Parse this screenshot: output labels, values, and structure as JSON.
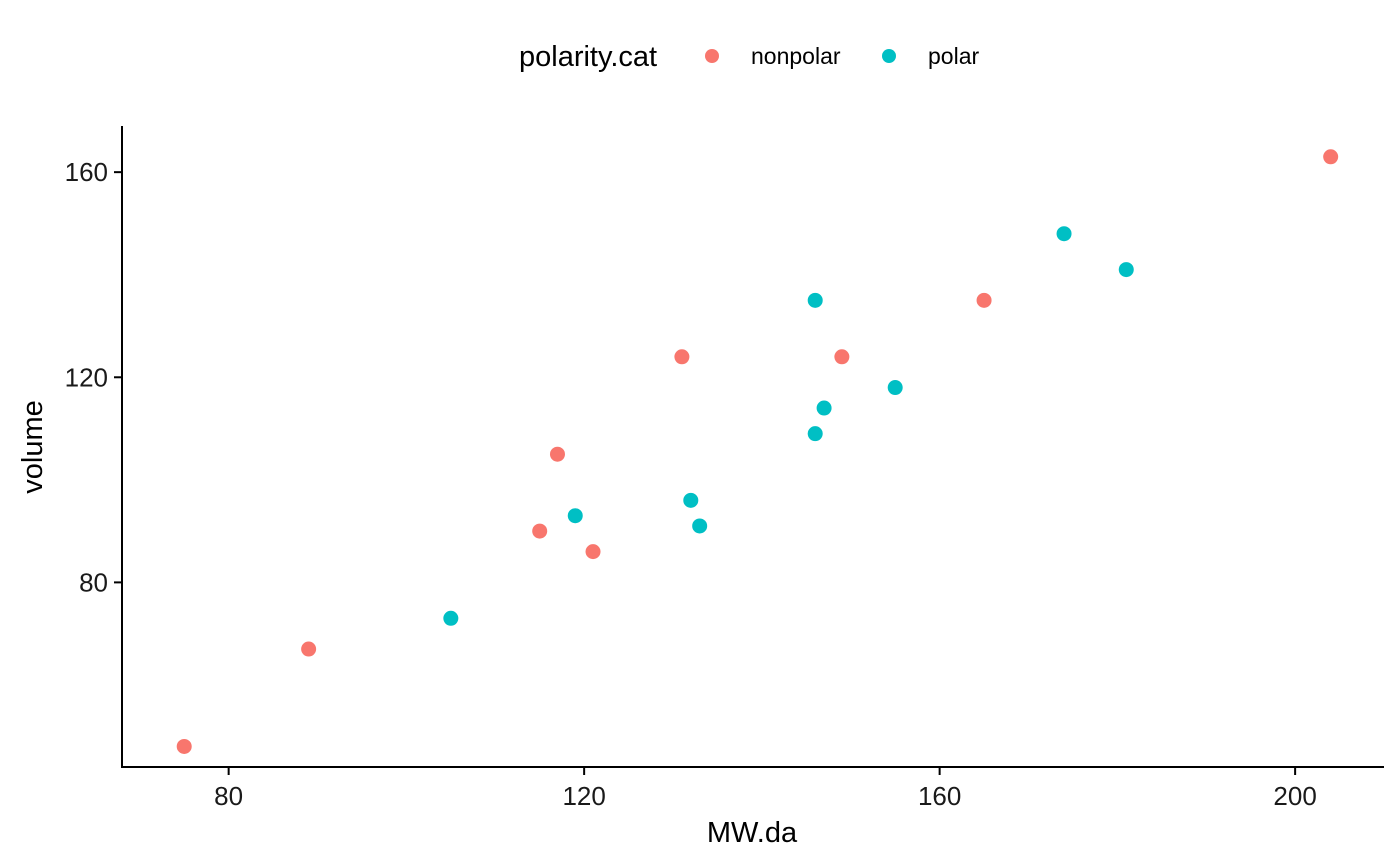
{
  "chart_data": {
    "type": "scatter",
    "title": "",
    "xlabel": "MW.da",
    "ylabel": "volume",
    "xlim": [
      68,
      210
    ],
    "ylim": [
      44,
      169
    ],
    "xticks": [
      80,
      120,
      160,
      200
    ],
    "yticks": [
      80,
      120,
      160
    ],
    "grid": false,
    "legend": {
      "title": "polarity.cat",
      "position": "top"
    },
    "series": [
      {
        "name": "nonpolar",
        "color": "#F8766D",
        "points": [
          {
            "x": 75,
            "y": 48
          },
          {
            "x": 89,
            "y": 67
          },
          {
            "x": 115,
            "y": 90
          },
          {
            "x": 117,
            "y": 105
          },
          {
            "x": 121,
            "y": 86
          },
          {
            "x": 131,
            "y": 124
          },
          {
            "x": 149,
            "y": 124
          },
          {
            "x": 165,
            "y": 135
          },
          {
            "x": 204,
            "y": 163
          }
        ]
      },
      {
        "name": "polar",
        "color": "#00BFC4",
        "points": [
          {
            "x": 105,
            "y": 73
          },
          {
            "x": 119,
            "y": 93
          },
          {
            "x": 132,
            "y": 96
          },
          {
            "x": 133,
            "y": 91
          },
          {
            "x": 146,
            "y": 135
          },
          {
            "x": 146,
            "y": 109
          },
          {
            "x": 147,
            "y": 114
          },
          {
            "x": 155,
            "y": 118
          },
          {
            "x": 174,
            "y": 148
          },
          {
            "x": 181,
            "y": 141
          }
        ]
      }
    ]
  }
}
